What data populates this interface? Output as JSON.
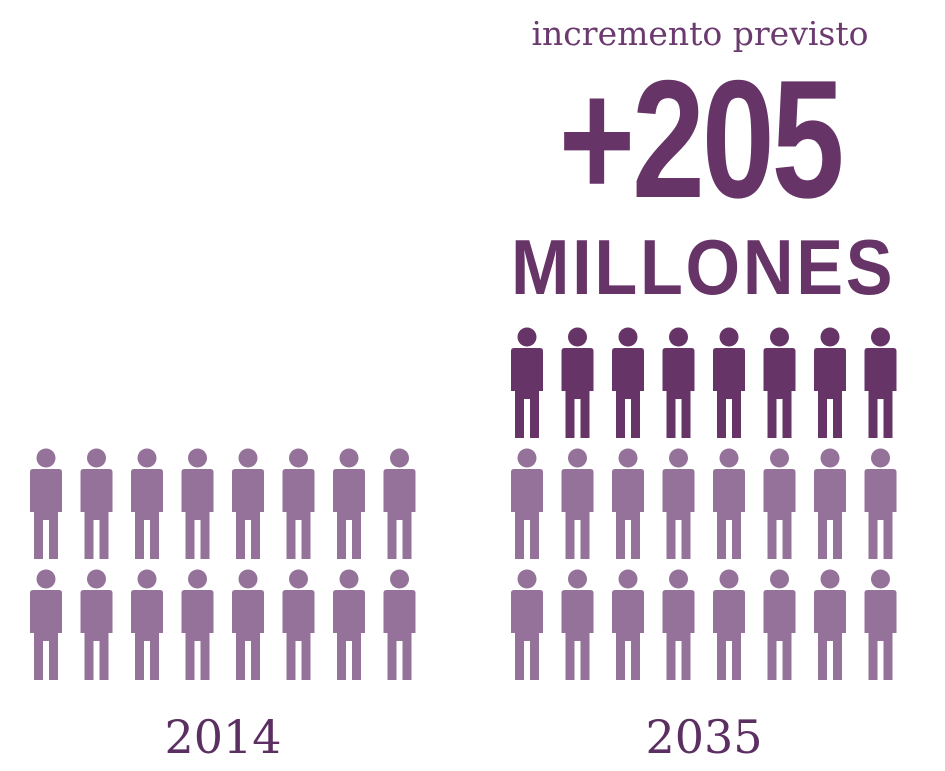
{
  "chart_data": {
    "type": "pictogram",
    "icons_per_row": 8,
    "categories": [
      "2014",
      "2035"
    ],
    "series": [
      {
        "rows": [
          2,
          2
        ]
      },
      {
        "rows": [
          0,
          1
        ]
      }
    ],
    "annotation": {
      "caption": "incremento previsto",
      "value": "+205",
      "unit": "MILLONES"
    }
  },
  "colors": {
    "base": "#957299",
    "increase": "#673468",
    "text": "#5c2f62"
  }
}
